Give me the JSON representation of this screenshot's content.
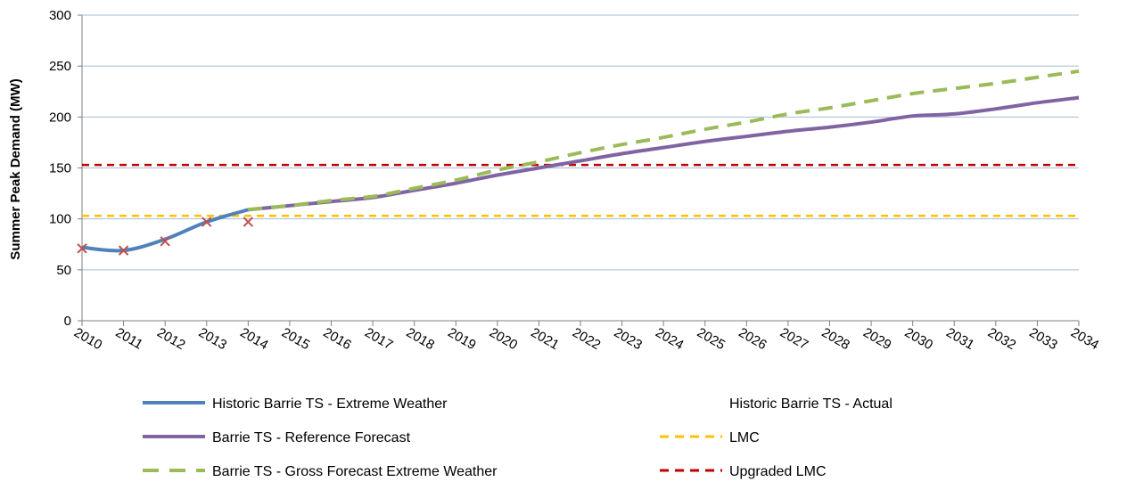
{
  "chart_data": {
    "type": "line",
    "title": "",
    "xlabel": "",
    "ylabel": "Summer Peak Demand (MW)",
    "x": [
      "2010",
      "2011",
      "2012",
      "2013",
      "2014",
      "2015",
      "2016",
      "2017",
      "2018",
      "2019",
      "2020",
      "2021",
      "2022",
      "2023",
      "2024",
      "2025",
      "2026",
      "2027",
      "2028",
      "2029",
      "2030",
      "2031",
      "2032",
      "2033",
      "2034"
    ],
    "ylim": [
      0,
      300
    ],
    "yticks": [
      "0",
      "50",
      "100",
      "150",
      "200",
      "250",
      "300"
    ],
    "grid": true,
    "legend_position": "bottom",
    "series": [
      {
        "name": "Historic Barrie TS - Extreme Weather",
        "style": "solid",
        "color": "#4F81BD",
        "values": [
          72,
          69,
          80,
          97,
          109,
          null,
          null,
          null,
          null,
          null,
          null,
          null,
          null,
          null,
          null,
          null,
          null,
          null,
          null,
          null,
          null,
          null,
          null,
          null,
          null
        ]
      },
      {
        "name": "Historic Barrie TS - Actual",
        "style": "marker-x",
        "color": "#C0504D",
        "values": [
          71,
          69,
          78,
          97,
          97,
          null,
          null,
          null,
          null,
          null,
          null,
          null,
          null,
          null,
          null,
          null,
          null,
          null,
          null,
          null,
          null,
          null,
          null,
          null,
          null
        ]
      },
      {
        "name": "Barrie TS - Reference Forecast",
        "style": "solid",
        "color": "#8064A2",
        "values": [
          null,
          null,
          null,
          null,
          109,
          113,
          117,
          121,
          128,
          135,
          143,
          150,
          157,
          164,
          170,
          176,
          181,
          186,
          190,
          195,
          201,
          203,
          208,
          214,
          219
        ]
      },
      {
        "name": "LMC",
        "style": "dashed",
        "color": "#FFC000",
        "values": [
          103,
          103,
          103,
          103,
          103,
          103,
          103,
          103,
          103,
          103,
          103,
          103,
          103,
          103,
          103,
          103,
          103,
          103,
          103,
          103,
          103,
          103,
          103,
          103,
          103
        ]
      },
      {
        "name": "Barrie TS - Gross Forecast Extreme Weather",
        "style": "dashed",
        "color": "#9BBB59",
        "values": [
          null,
          null,
          null,
          null,
          109,
          113,
          118,
          122,
          130,
          138,
          148,
          156,
          165,
          173,
          180,
          188,
          195,
          203,
          209,
          216,
          223,
          228,
          233,
          239,
          245
        ]
      },
      {
        "name": "Upgraded LMC",
        "style": "dashed",
        "color": "#C00000",
        "values": [
          153,
          153,
          153,
          153,
          153,
          153,
          153,
          153,
          153,
          153,
          153,
          153,
          153,
          153,
          153,
          153,
          153,
          153,
          153,
          153,
          153,
          153,
          153,
          153,
          153
        ]
      }
    ],
    "legend_order": [
      0,
      1,
      2,
      3,
      4,
      5
    ]
  }
}
